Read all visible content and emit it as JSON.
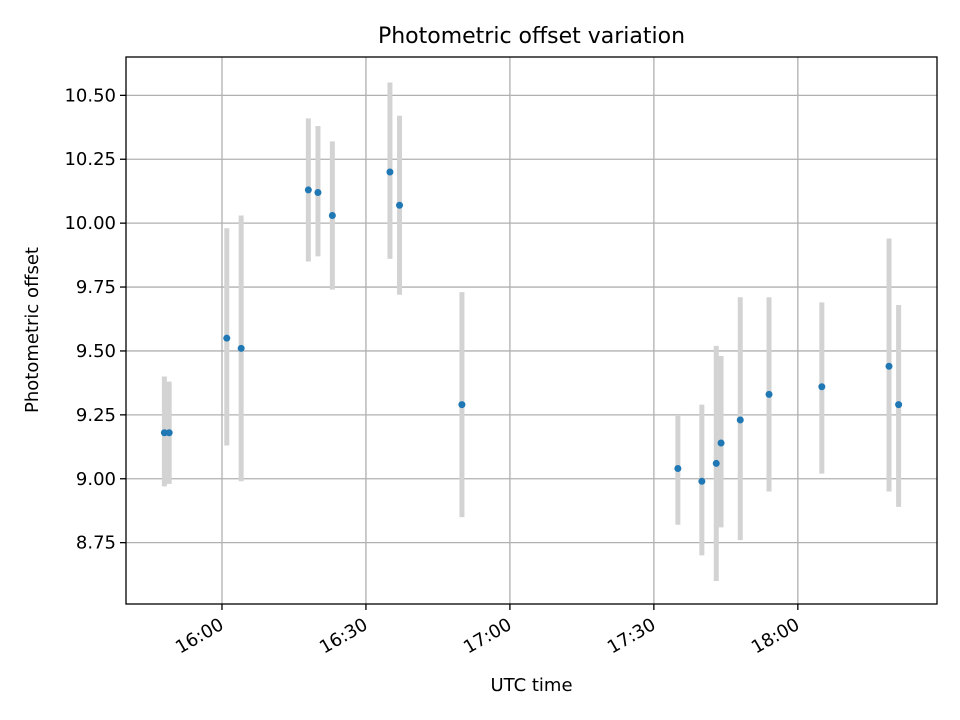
{
  "chart_data": {
    "type": "scatter",
    "title": "Photometric offset variation",
    "xlabel": "UTC time",
    "ylabel": "Photometric offset",
    "x_ticks": [
      "16:00",
      "16:30",
      "17:00",
      "17:30",
      "18:00"
    ],
    "y_ticks": [
      "8.75",
      "9.00",
      "9.25",
      "9.50",
      "9.75",
      "10.00",
      "10.25",
      "10.50"
    ],
    "xlim": [
      "15:40",
      "18:29"
    ],
    "ylim": [
      8.51,
      10.65
    ],
    "grid": true,
    "colors": {
      "point": "#1f77b4",
      "errorbar": "#d3d3d3",
      "grid": "#b0b0b0"
    },
    "points": [
      {
        "x": "15:48",
        "y": 9.18,
        "ylow": 8.97,
        "yhigh": 9.4
      },
      {
        "x": "15:49",
        "y": 9.18,
        "ylow": 8.98,
        "yhigh": 9.38
      },
      {
        "x": "16:01",
        "y": 9.55,
        "ylow": 9.13,
        "yhigh": 9.98
      },
      {
        "x": "16:04",
        "y": 9.51,
        "ylow": 8.99,
        "yhigh": 10.03
      },
      {
        "x": "16:18",
        "y": 10.13,
        "ylow": 9.85,
        "yhigh": 10.41
      },
      {
        "x": "16:20",
        "y": 10.12,
        "ylow": 9.87,
        "yhigh": 10.38
      },
      {
        "x": "16:23",
        "y": 10.03,
        "ylow": 9.74,
        "yhigh": 10.32
      },
      {
        "x": "16:35",
        "y": 10.2,
        "ylow": 9.86,
        "yhigh": 10.55
      },
      {
        "x": "16:37",
        "y": 10.07,
        "ylow": 9.72,
        "yhigh": 10.42
      },
      {
        "x": "16:50",
        "y": 9.29,
        "ylow": 8.85,
        "yhigh": 9.73
      },
      {
        "x": "17:35",
        "y": 9.04,
        "ylow": 8.82,
        "yhigh": 9.25
      },
      {
        "x": "17:40",
        "y": 8.99,
        "ylow": 8.7,
        "yhigh": 9.29
      },
      {
        "x": "17:43",
        "y": 9.06,
        "ylow": 8.6,
        "yhigh": 9.52
      },
      {
        "x": "17:44",
        "y": 9.14,
        "ylow": 8.81,
        "yhigh": 9.48
      },
      {
        "x": "17:48",
        "y": 9.23,
        "ylow": 8.76,
        "yhigh": 9.71
      },
      {
        "x": "17:54",
        "y": 9.33,
        "ylow": 8.95,
        "yhigh": 9.71
      },
      {
        "x": "18:05",
        "y": 9.36,
        "ylow": 9.02,
        "yhigh": 9.69
      },
      {
        "x": "18:19",
        "y": 9.44,
        "ylow": 8.95,
        "yhigh": 9.94
      },
      {
        "x": "18:21",
        "y": 9.29,
        "ylow": 8.89,
        "yhigh": 9.68
      }
    ]
  }
}
